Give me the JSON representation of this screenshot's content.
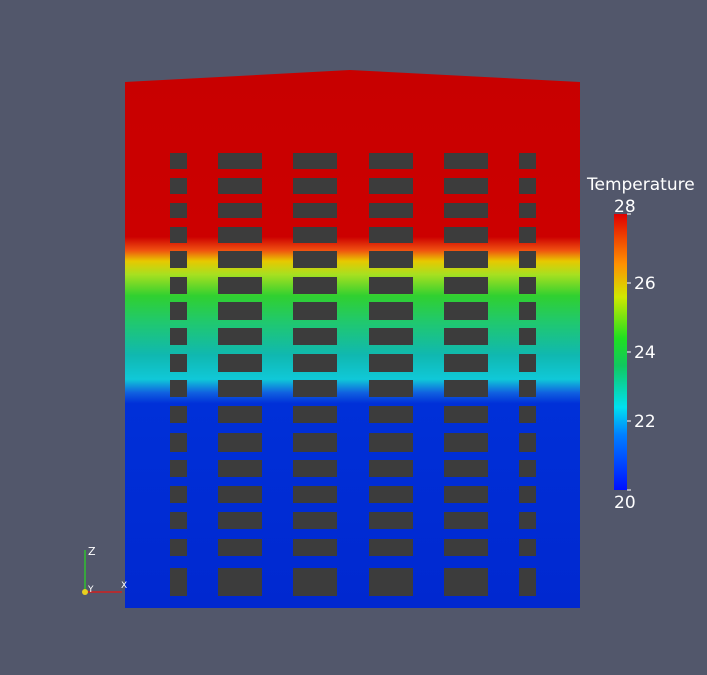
{
  "colorbar": {
    "title": "Temperature",
    "range": [
      20,
      28
    ],
    "ticks": [
      28,
      26,
      24,
      22,
      20
    ]
  },
  "axes": {
    "z": "Z",
    "y": "Y",
    "x": "X"
  }
}
